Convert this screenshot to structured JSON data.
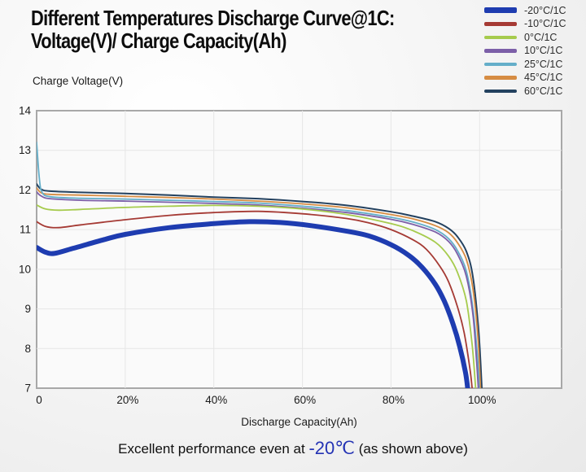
{
  "title": {
    "line1": "Different Temperatures Discharge Curve@1C:",
    "line2": "Voltage(V)/ Charge Capacity(Ah)"
  },
  "footer": {
    "prefix": "Excellent performance even at ",
    "highlight": "-20℃",
    "suffix": " (as shown above)",
    "highlight_color": "#2433b4"
  },
  "chart_data": {
    "type": "line",
    "title": "Different Temperatures Discharge Curve@1C",
    "xlabel": "Discharge Capacity(Ah)",
    "ylabel": "Charge Voltage(V)",
    "xlim": [
      0,
      118.5
    ],
    "ylim": [
      7,
      14
    ],
    "grid": true,
    "legend_position": "top-right",
    "frame_color": "#a8a8a8",
    "grid_color": "#e6e6e6",
    "plot_fill": "#fafafa",
    "xticks": [
      {
        "value": 0,
        "label": "0"
      },
      {
        "value": 20,
        "label": "20%"
      },
      {
        "value": 40,
        "label": "40%"
      },
      {
        "value": 60,
        "label": "60%"
      },
      {
        "value": 80,
        "label": "80%"
      },
      {
        "value": 100,
        "label": "100%"
      }
    ],
    "yticks": [
      {
        "value": 7,
        "label": "7"
      },
      {
        "value": 8,
        "label": "8"
      },
      {
        "value": 9,
        "label": "9"
      },
      {
        "value": 10,
        "label": "10"
      },
      {
        "value": 11,
        "label": "11"
      },
      {
        "value": 12,
        "label": "12"
      },
      {
        "value": 13,
        "label": "13"
      },
      {
        "value": 14,
        "label": "14"
      }
    ],
    "series": [
      {
        "name": "-20°C/1C",
        "color": "#1e3cb0",
        "width": 6,
        "points": [
          [
            0,
            10.55
          ],
          [
            2,
            10.43
          ],
          [
            4,
            10.4
          ],
          [
            8,
            10.52
          ],
          [
            15,
            10.74
          ],
          [
            20,
            10.88
          ],
          [
            30,
            11.05
          ],
          [
            40,
            11.15
          ],
          [
            48,
            11.2
          ],
          [
            55,
            11.18
          ],
          [
            62,
            11.1
          ],
          [
            70,
            10.96
          ],
          [
            75,
            10.84
          ],
          [
            80,
            10.62
          ],
          [
            84,
            10.35
          ],
          [
            87,
            10.05
          ],
          [
            90,
            9.62
          ],
          [
            92,
            9.2
          ],
          [
            94,
            8.62
          ],
          [
            95.5,
            8.05
          ],
          [
            96.8,
            7.4
          ],
          [
            97.3,
            7.0
          ]
        ]
      },
      {
        "name": "-10°C/1C",
        "color": "#a53a34",
        "width": 1.8,
        "points": [
          [
            0,
            11.2
          ],
          [
            2,
            11.08
          ],
          [
            5,
            11.05
          ],
          [
            10,
            11.12
          ],
          [
            20,
            11.25
          ],
          [
            30,
            11.36
          ],
          [
            40,
            11.43
          ],
          [
            50,
            11.46
          ],
          [
            60,
            11.4
          ],
          [
            70,
            11.28
          ],
          [
            75,
            11.17
          ],
          [
            80,
            11.0
          ],
          [
            85,
            10.74
          ],
          [
            88,
            10.5
          ],
          [
            91,
            10.08
          ],
          [
            93,
            9.68
          ],
          [
            95,
            9.05
          ],
          [
            96.5,
            8.4
          ],
          [
            97.8,
            7.5
          ],
          [
            98.3,
            7.0
          ]
        ]
      },
      {
        "name": "0°C/1C",
        "color": "#a6cb4d",
        "width": 1.8,
        "points": [
          [
            0,
            11.62
          ],
          [
            2,
            11.52
          ],
          [
            5,
            11.49
          ],
          [
            10,
            11.51
          ],
          [
            20,
            11.56
          ],
          [
            30,
            11.59
          ],
          [
            40,
            11.61
          ],
          [
            50,
            11.59
          ],
          [
            60,
            11.52
          ],
          [
            70,
            11.38
          ],
          [
            80,
            11.15
          ],
          [
            85,
            10.97
          ],
          [
            90,
            10.68
          ],
          [
            93,
            10.33
          ],
          [
            95,
            9.92
          ],
          [
            97,
            9.2
          ],
          [
            98.3,
            8.1
          ],
          [
            99.1,
            7.0
          ]
        ]
      },
      {
        "name": "10°C/1C",
        "color": "#7c5fa8",
        "width": 1.8,
        "points": [
          [
            0,
            11.95
          ],
          [
            1,
            11.85
          ],
          [
            3,
            11.78
          ],
          [
            10,
            11.74
          ],
          [
            20,
            11.72
          ],
          [
            30,
            11.69
          ],
          [
            40,
            11.66
          ],
          [
            50,
            11.62
          ],
          [
            60,
            11.54
          ],
          [
            70,
            11.43
          ],
          [
            80,
            11.26
          ],
          [
            85,
            11.13
          ],
          [
            90,
            10.94
          ],
          [
            93,
            10.7
          ],
          [
            95,
            10.38
          ],
          [
            97,
            9.82
          ],
          [
            98.5,
            8.85
          ],
          [
            99.3,
            7.7
          ],
          [
            99.7,
            7.0
          ]
        ]
      },
      {
        "name": "25°C/1C",
        "color": "#64aec9",
        "width": 1.8,
        "points": [
          [
            0,
            13.2
          ],
          [
            0.6,
            12.3
          ],
          [
            1.2,
            11.95
          ],
          [
            3,
            11.83
          ],
          [
            10,
            11.79
          ],
          [
            20,
            11.77
          ],
          [
            30,
            11.74
          ],
          [
            40,
            11.71
          ],
          [
            50,
            11.67
          ],
          [
            60,
            11.59
          ],
          [
            70,
            11.48
          ],
          [
            80,
            11.31
          ],
          [
            85,
            11.19
          ],
          [
            90,
            11.0
          ],
          [
            93,
            10.77
          ],
          [
            95,
            10.47
          ],
          [
            97,
            9.95
          ],
          [
            98.5,
            9.0
          ],
          [
            99.5,
            7.8
          ],
          [
            99.9,
            7.0
          ]
        ]
      },
      {
        "name": "45°C/1C",
        "color": "#d68c43",
        "width": 1.8,
        "points": [
          [
            0,
            12.05
          ],
          [
            1,
            11.93
          ],
          [
            3,
            11.89
          ],
          [
            10,
            11.87
          ],
          [
            20,
            11.84
          ],
          [
            30,
            11.81
          ],
          [
            40,
            11.77
          ],
          [
            50,
            11.72
          ],
          [
            60,
            11.65
          ],
          [
            70,
            11.55
          ],
          [
            80,
            11.38
          ],
          [
            85,
            11.27
          ],
          [
            90,
            11.1
          ],
          [
            93,
            10.92
          ],
          [
            95,
            10.67
          ],
          [
            97,
            10.25
          ],
          [
            98.5,
            9.5
          ],
          [
            99.6,
            8.3
          ],
          [
            100.2,
            7.0
          ]
        ]
      },
      {
        "name": "60°C/1C",
        "color": "#23415f",
        "width": 2,
        "points": [
          [
            0,
            12.15
          ],
          [
            1,
            12.02
          ],
          [
            3,
            11.97
          ],
          [
            10,
            11.94
          ],
          [
            20,
            11.91
          ],
          [
            30,
            11.87
          ],
          [
            40,
            11.82
          ],
          [
            50,
            11.78
          ],
          [
            60,
            11.71
          ],
          [
            70,
            11.61
          ],
          [
            80,
            11.45
          ],
          [
            85,
            11.34
          ],
          [
            90,
            11.2
          ],
          [
            93,
            11.03
          ],
          [
            95,
            10.82
          ],
          [
            97,
            10.45
          ],
          [
            98.5,
            9.8
          ],
          [
            99.8,
            8.4
          ],
          [
            100.5,
            7.0
          ]
        ]
      }
    ]
  }
}
